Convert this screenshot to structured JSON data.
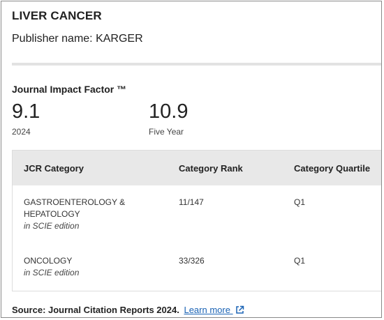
{
  "journal": {
    "title": "LIVER CANCER",
    "publisher": "Publisher name: KARGER"
  },
  "impact_factor": {
    "label": "Journal Impact Factor ™",
    "metrics": [
      {
        "value": "9.1",
        "caption": "2024"
      },
      {
        "value": "10.9",
        "caption": "Five Year"
      }
    ]
  },
  "table": {
    "headers": [
      "JCR Category",
      "Category Rank",
      "Category Quartile"
    ],
    "rows": [
      {
        "category": "GASTROENTEROLOGY & HEPATOLOGY",
        "edition": "in SCIE edition",
        "rank": "11/147",
        "quartile": "Q1"
      },
      {
        "category": "ONCOLOGY",
        "edition": "in SCIE edition",
        "rank": "33/326",
        "quartile": "Q1"
      }
    ]
  },
  "footer": {
    "source": "Source: Journal Citation Reports 2024.",
    "learn_more": "Learn more",
    "icon": "external-link-icon",
    "link_color": "#1a63b5"
  }
}
